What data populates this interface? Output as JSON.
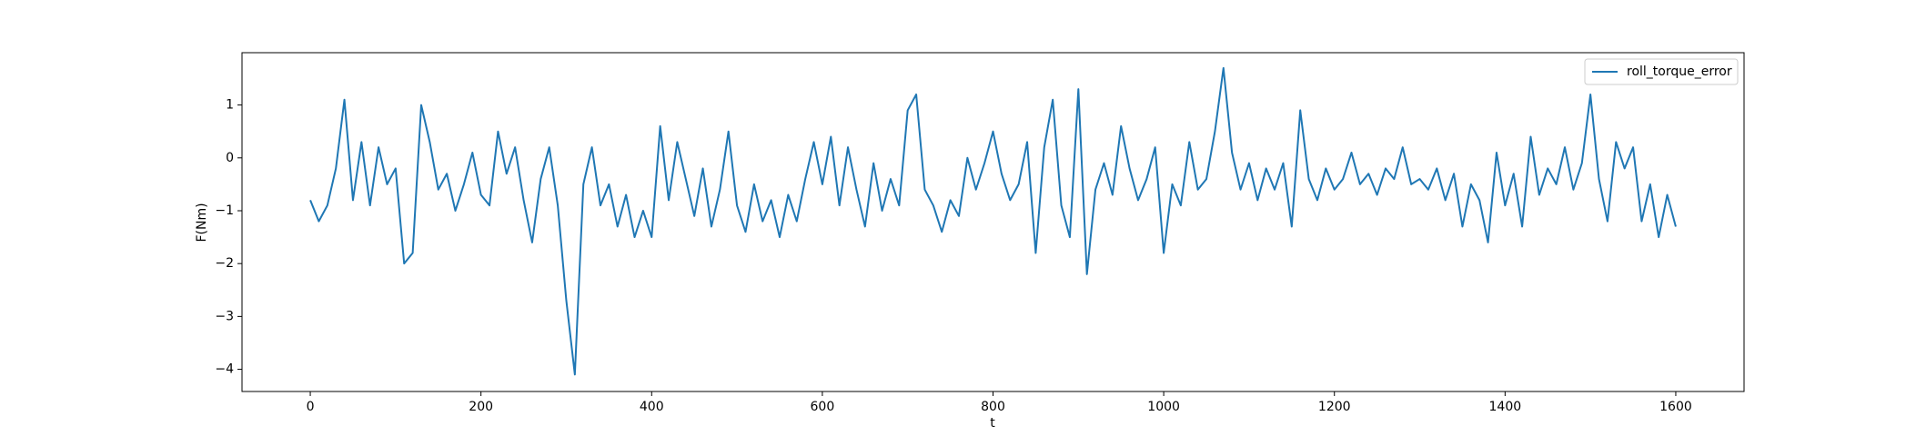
{
  "chart_data": {
    "type": "line",
    "xlabel": "t",
    "ylabel": "F(Nm)",
    "x": [
      0,
      10,
      20,
      30,
      40,
      50,
      60,
      70,
      80,
      90,
      100,
      110,
      120,
      130,
      140,
      150,
      160,
      170,
      180,
      190,
      200,
      210,
      220,
      230,
      240,
      250,
      260,
      270,
      280,
      290,
      300,
      310,
      320,
      330,
      340,
      350,
      360,
      370,
      380,
      390,
      400,
      410,
      420,
      430,
      440,
      450,
      460,
      470,
      480,
      490,
      500,
      510,
      520,
      530,
      540,
      550,
      560,
      570,
      580,
      590,
      600,
      610,
      620,
      630,
      640,
      650,
      660,
      670,
      680,
      690,
      700,
      710,
      720,
      730,
      740,
      750,
      760,
      770,
      780,
      790,
      800,
      810,
      820,
      830,
      840,
      850,
      860,
      870,
      880,
      890,
      900,
      910,
      920,
      930,
      940,
      950,
      960,
      970,
      980,
      990,
      1000,
      1010,
      1020,
      1030,
      1040,
      1050,
      1060,
      1070,
      1080,
      1090,
      1100,
      1110,
      1120,
      1130,
      1140,
      1150,
      1160,
      1170,
      1180,
      1190,
      1200,
      1210,
      1220,
      1230,
      1240,
      1250,
      1260,
      1270,
      1280,
      1290,
      1300,
      1310,
      1320,
      1330,
      1340,
      1350,
      1360,
      1370,
      1380,
      1390,
      1400,
      1410,
      1420,
      1430,
      1440,
      1450,
      1460,
      1470,
      1480,
      1490,
      1500,
      1510,
      1520,
      1530,
      1540,
      1550,
      1560,
      1570,
      1580,
      1590,
      1600
    ],
    "series": [
      {
        "name": "roll_torque_error",
        "color": "#1f77b4",
        "values": [
          -0.8,
          -1.2,
          -0.9,
          -0.2,
          1.1,
          -0.8,
          0.3,
          -0.9,
          0.2,
          -0.5,
          -0.2,
          -2.0,
          -1.8,
          1.0,
          0.3,
          -0.6,
          -0.3,
          -1.0,
          -0.5,
          0.1,
          -0.7,
          -0.9,
          0.5,
          -0.3,
          0.2,
          -0.8,
          -1.6,
          -0.4,
          0.2,
          -0.9,
          -2.7,
          -4.1,
          -0.5,
          0.2,
          -0.9,
          -0.5,
          -1.3,
          -0.7,
          -1.5,
          -1.0,
          -1.5,
          0.6,
          -0.8,
          0.3,
          -0.4,
          -1.1,
          -0.2,
          -1.3,
          -0.6,
          0.5,
          -0.9,
          -1.4,
          -0.5,
          -1.2,
          -0.8,
          -1.5,
          -0.7,
          -1.2,
          -0.4,
          0.3,
          -0.5,
          0.4,
          -0.9,
          0.2,
          -0.6,
          -1.3,
          -0.1,
          -1.0,
          -0.4,
          -0.9,
          0.9,
          1.2,
          -0.6,
          -0.9,
          -1.4,
          -0.8,
          -1.1,
          0.0,
          -0.6,
          -0.1,
          0.5,
          -0.3,
          -0.8,
          -0.5,
          0.3,
          -1.8,
          0.2,
          1.1,
          -0.9,
          -1.5,
          1.3,
          -2.2,
          -0.6,
          -0.1,
          -0.7,
          0.6,
          -0.2,
          -0.8,
          -0.4,
          0.2,
          -1.8,
          -0.5,
          -0.9,
          0.3,
          -0.6,
          -0.4,
          0.5,
          1.7,
          0.1,
          -0.6,
          -0.1,
          -0.8,
          -0.2,
          -0.6,
          -0.1,
          -1.3,
          0.9,
          -0.4,
          -0.8,
          -0.2,
          -0.6,
          -0.4,
          0.1,
          -0.5,
          -0.3,
          -0.7,
          -0.2,
          -0.4,
          0.2,
          -0.5,
          -0.4,
          -0.6,
          -0.2,
          -0.8,
          -0.3,
          -1.3,
          -0.5,
          -0.8,
          -1.6,
          0.1,
          -0.9,
          -0.3,
          -1.3,
          0.4,
          -0.7,
          -0.2,
          -0.5,
          0.2,
          -0.6,
          -0.1,
          1.2,
          -0.4,
          -1.2,
          0.3,
          -0.2,
          0.2,
          -1.2,
          -0.5,
          -1.5,
          -0.7,
          -1.3
        ]
      }
    ],
    "xlim": [
      -80,
      1680
    ],
    "ylim": [
      -4.42,
      1.99
    ],
    "xticks": [
      0,
      200,
      400,
      600,
      800,
      1000,
      1200,
      1400,
      1600
    ],
    "yticks": [
      {
        "value": -4,
        "label": "−4"
      },
      {
        "value": -3,
        "label": "−3"
      },
      {
        "value": -2,
        "label": "−2"
      },
      {
        "value": -1,
        "label": "−1"
      },
      0,
      1
    ],
    "legend": "upper right"
  }
}
